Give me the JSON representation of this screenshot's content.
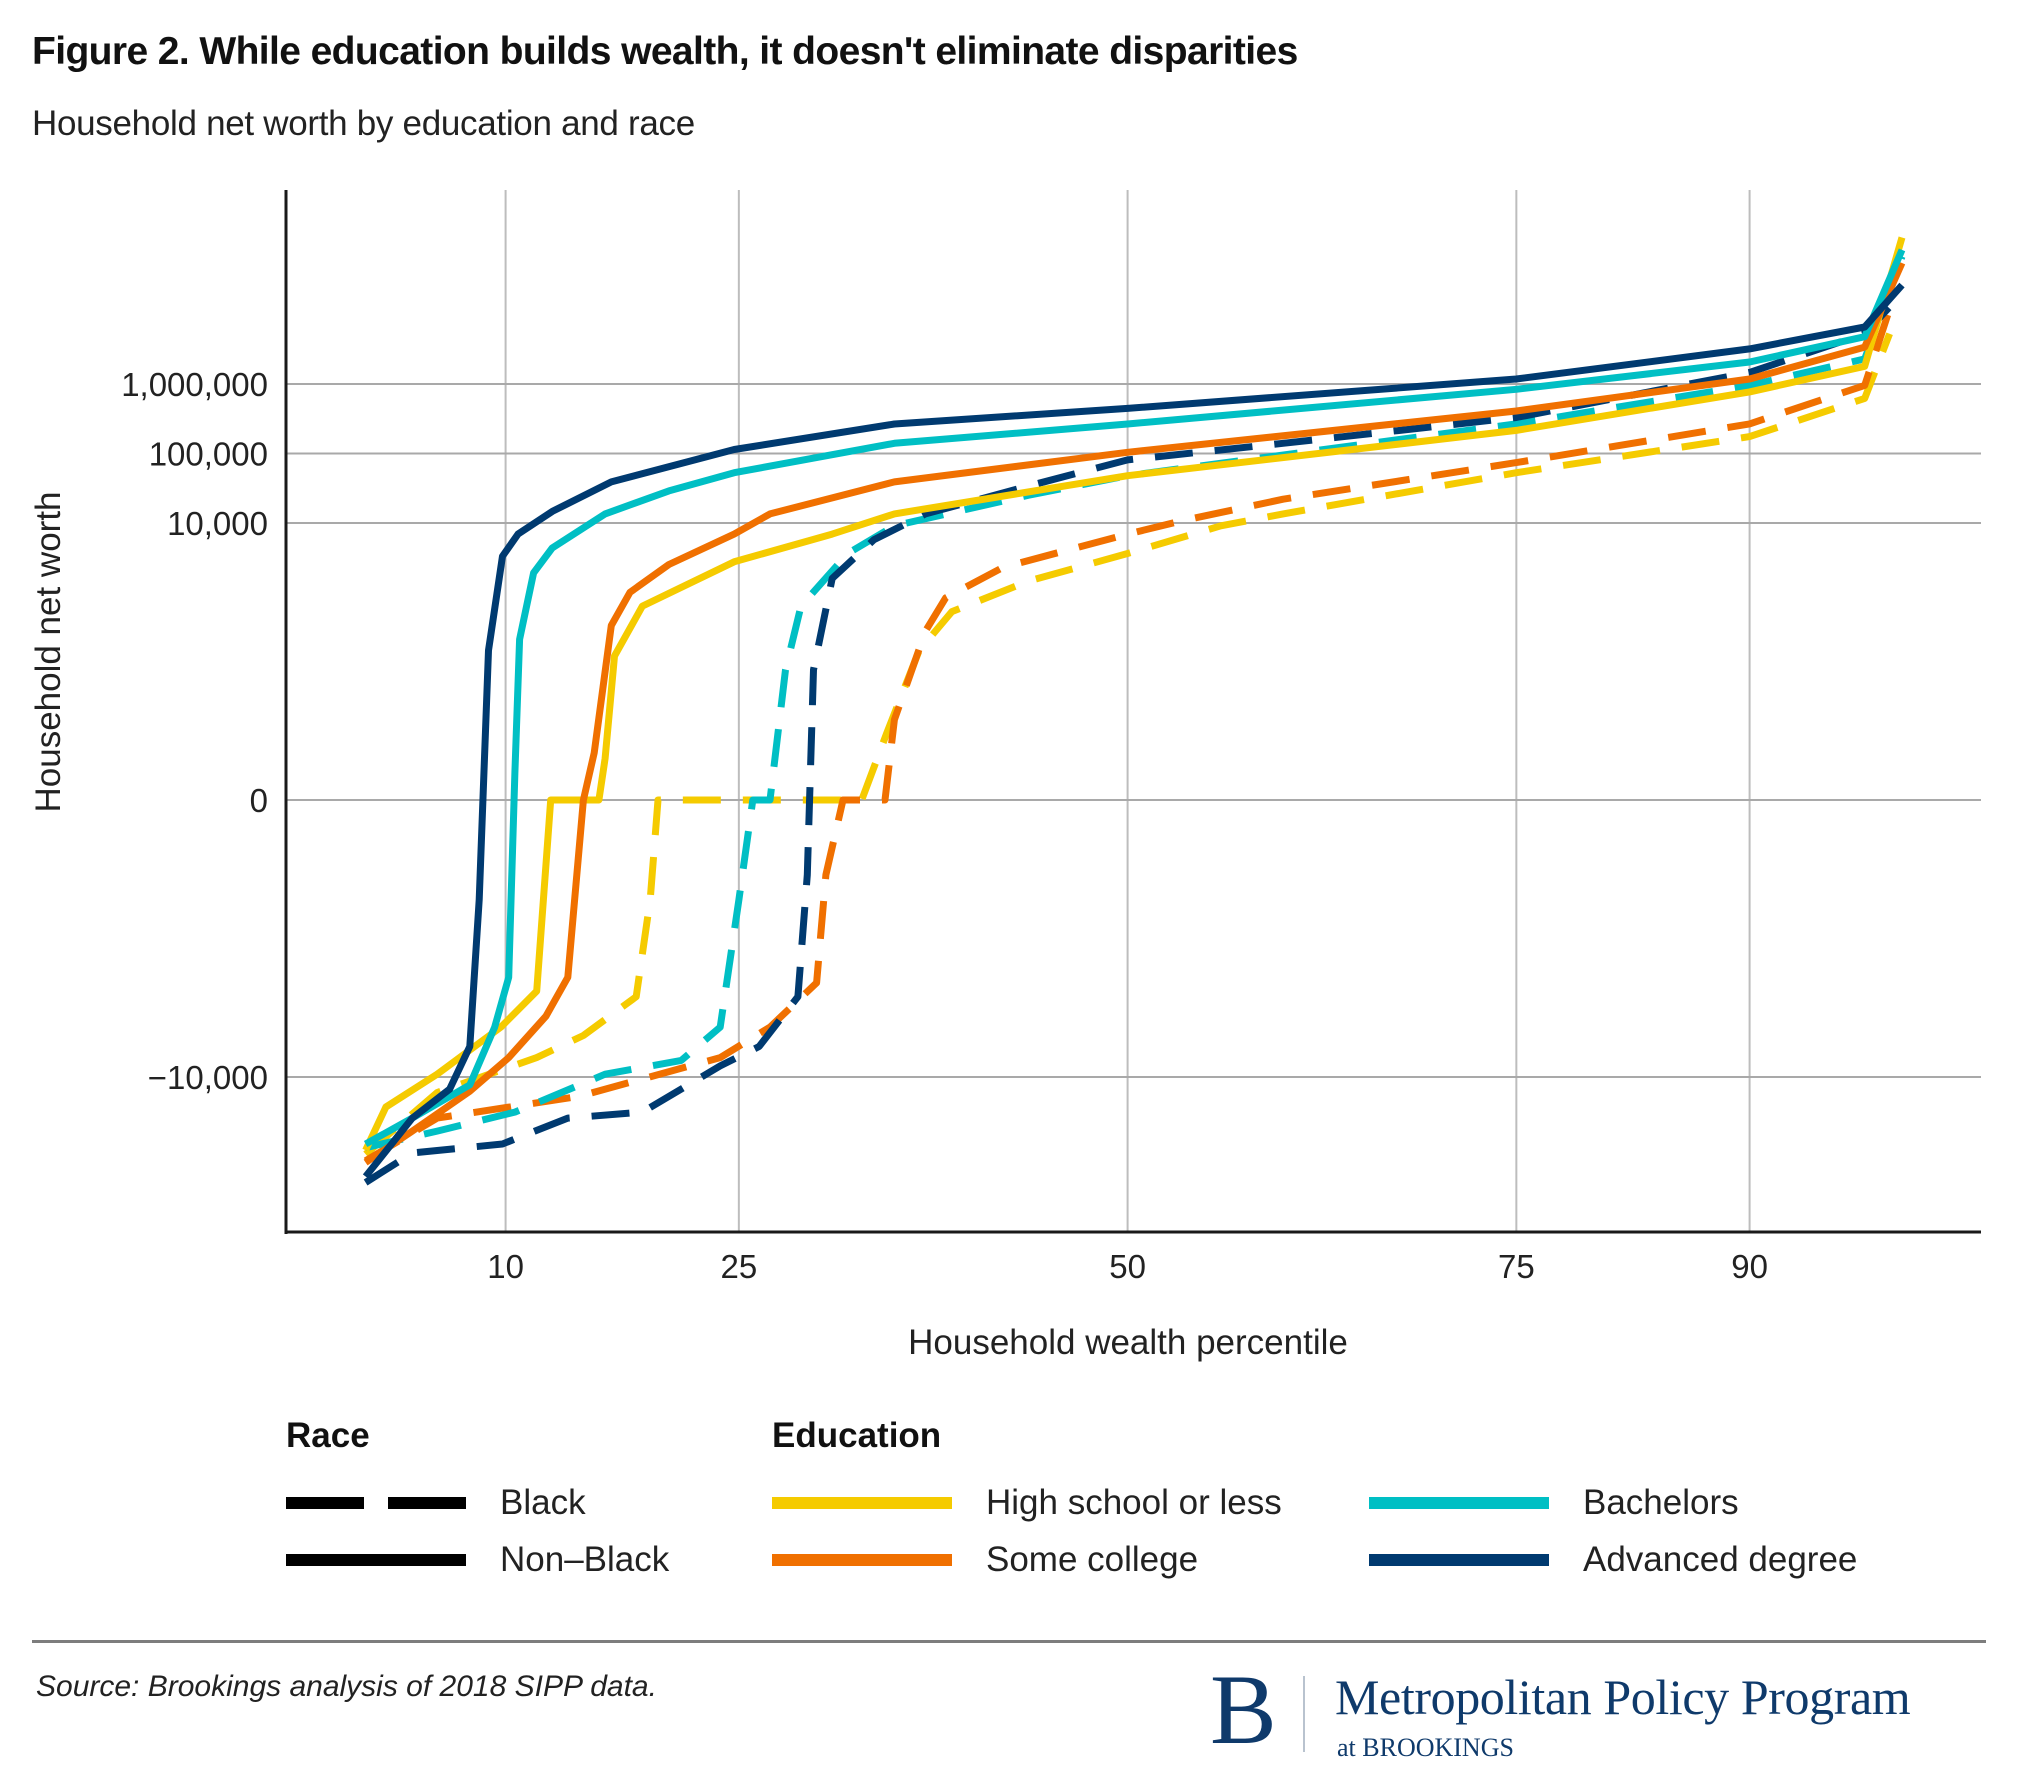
{
  "header": {
    "title": "Figure 2. While education builds wealth, it doesn't eliminate disparities",
    "subtitle": "Household net worth by education and race"
  },
  "colors": {
    "high_school": "#f5cb00",
    "some_college": "#f07000",
    "bachelors": "#00bfc4",
    "advanced": "#003a70",
    "grid": "#bdbdbd",
    "axis": "#1a1a1a"
  },
  "chart_data": {
    "type": "line",
    "title": "Figure 2. While education builds wealth, it doesn't eliminate disparities",
    "subtitle": "Household net worth by education and race",
    "xlabel": "Household wealth percentile",
    "ylabel": "Household net worth",
    "x_ticks": [
      10,
      25,
      50,
      75,
      90
    ],
    "x_tick_labels": [
      "10",
      "25",
      "50",
      "75",
      "90"
    ],
    "xlim": [
      0,
      100
    ],
    "y_scale": "symlog (linear between -10,000 and 10,000; logarithmic beyond)",
    "y_ticks": [
      -10000,
      0,
      10000,
      100000,
      1000000
    ],
    "y_tick_labels": [
      "−10,000",
      "0",
      "10,000",
      "100,000",
      "1,000,000"
    ],
    "grid": true,
    "legend_position": "bottom",
    "series": [
      {
        "name": "High school or less, Non-Black",
        "education": "High school or less",
        "race": "Non-Black",
        "color_key": "high_school",
        "dashed": false,
        "points": [
          [
            1,
            -113000
          ],
          [
            2.3,
            -27000
          ],
          [
            5.6,
            -9900
          ],
          [
            9.7,
            -8200
          ],
          [
            12,
            -6900
          ],
          [
            12.9,
            0
          ],
          [
            16,
            0
          ],
          [
            16.4,
            1500
          ],
          [
            17,
            5200
          ],
          [
            18.8,
            7000
          ],
          [
            24.7,
            8600
          ],
          [
            31,
            9600
          ],
          [
            35,
            13500
          ],
          [
            50,
            48000
          ],
          [
            75,
            215000
          ],
          [
            90,
            770000
          ],
          [
            97.4,
            1800000
          ],
          [
            99.8,
            128000000
          ]
        ]
      },
      {
        "name": "Some college, Non-Black",
        "education": "Some college",
        "race": "Non-Black",
        "color_key": "some_college",
        "dashed": false,
        "points": [
          [
            1,
            -170000
          ],
          [
            4,
            -60000
          ],
          [
            7.7,
            -16000
          ],
          [
            10.2,
            -9300
          ],
          [
            12.6,
            -7800
          ],
          [
            14,
            -6400
          ],
          [
            15,
            0
          ],
          [
            15.7,
            1700
          ],
          [
            16.8,
            6300
          ],
          [
            18,
            7500
          ],
          [
            20.5,
            8500
          ],
          [
            24.7,
            9600
          ],
          [
            27,
            13500
          ],
          [
            35,
            39000
          ],
          [
            50,
            104000
          ],
          [
            75,
            409000
          ],
          [
            90,
            1180000
          ],
          [
            97.4,
            3400000
          ],
          [
            99.8,
            55000000
          ]
        ]
      },
      {
        "name": "Bachelors, Non-Black",
        "education": "Bachelors",
        "race": "Non-Black",
        "color_key": "bachelors",
        "dashed": false,
        "points": [
          [
            1,
            -92000
          ],
          [
            4,
            -39000
          ],
          [
            7.7,
            -13000
          ],
          [
            9.3,
            -8200
          ],
          [
            10.2,
            -6400
          ],
          [
            10.6,
            1000
          ],
          [
            10.9,
            5800
          ],
          [
            11.8,
            8200
          ],
          [
            13,
            9100
          ],
          [
            16.4,
            13500
          ],
          [
            20.5,
            29000
          ],
          [
            24.7,
            53000
          ],
          [
            35,
            140000
          ],
          [
            50,
            266000
          ],
          [
            75,
            840000
          ],
          [
            90,
            2070000
          ],
          [
            97.4,
            4800000
          ],
          [
            99.8,
            85000000
          ]
        ]
      },
      {
        "name": "Advanced degree, Non-Black",
        "education": "Advanced degree",
        "race": "Non-Black",
        "color_key": "advanced",
        "dashed": false,
        "points": [
          [
            1,
            -270000
          ],
          [
            4,
            -39000
          ],
          [
            6.4,
            -15000
          ],
          [
            7.7,
            -8900
          ],
          [
            8.3,
            -3600
          ],
          [
            8.9,
            5400
          ],
          [
            9.8,
            8800
          ],
          [
            10.8,
            9600
          ],
          [
            13,
            14700
          ],
          [
            16.8,
            39000
          ],
          [
            24.7,
            114000
          ],
          [
            35,
            266000
          ],
          [
            50,
            446000
          ],
          [
            75,
            1180000
          ],
          [
            90,
            3200000
          ],
          [
            97.4,
            6600000
          ],
          [
            99.8,
            26500000
          ]
        ]
      },
      {
        "name": "High school or less, Black",
        "education": "High school or less",
        "race": "Black",
        "color_key": "high_school",
        "dashed": true,
        "points": [
          [
            1,
            -129000
          ],
          [
            5.6,
            -16700
          ],
          [
            12,
            -9300
          ],
          [
            15,
            -8500
          ],
          [
            18.4,
            -7100
          ],
          [
            19.3,
            -3600
          ],
          [
            19.8,
            0
          ],
          [
            32.9,
            0
          ],
          [
            34.5,
            2400
          ],
          [
            36.6,
            5400
          ],
          [
            38.7,
            6800
          ],
          [
            43.6,
            7900
          ],
          [
            50,
            8900
          ],
          [
            56,
            9900
          ],
          [
            60,
            13500
          ],
          [
            75,
            53000
          ],
          [
            90,
            175000
          ],
          [
            97.4,
            620000
          ],
          [
            99,
            5300000
          ]
        ]
      },
      {
        "name": "Some college, Black",
        "education": "Some college",
        "race": "Black",
        "color_key": "some_college",
        "dashed": true,
        "points": [
          [
            1,
            -160000
          ],
          [
            5.6,
            -39000
          ],
          [
            14.7,
            -19000
          ],
          [
            23.8,
            -9300
          ],
          [
            27,
            -8200
          ],
          [
            30,
            -6600
          ],
          [
            30.6,
            -2700
          ],
          [
            31.7,
            0
          ],
          [
            34.4,
            0
          ],
          [
            35,
            2900
          ],
          [
            37,
            6100
          ],
          [
            38.3,
            7300
          ],
          [
            42,
            8400
          ],
          [
            50,
            9600
          ],
          [
            53.6,
            10900
          ],
          [
            60,
            22000
          ],
          [
            75,
            74000
          ],
          [
            90,
            267000
          ],
          [
            97.4,
            955000
          ],
          [
            99,
            12000000
          ]
        ]
      },
      {
        "name": "Bachelors, Black",
        "education": "Bachelors",
        "race": "Black",
        "color_key": "bachelors",
        "dashed": true,
        "points": [
          [
            1,
            -104000
          ],
          [
            5.6,
            -60000
          ],
          [
            10.6,
            -32000
          ],
          [
            16.4,
            -9900
          ],
          [
            21.3,
            -9400
          ],
          [
            23.8,
            -8200
          ],
          [
            25,
            -3600
          ],
          [
            25.9,
            0
          ],
          [
            27,
            0
          ],
          [
            28,
            4700
          ],
          [
            29,
            7000
          ],
          [
            32,
            8900
          ],
          [
            35,
            9900
          ],
          [
            43.6,
            25000
          ],
          [
            50,
            48000
          ],
          [
            75,
            267000
          ],
          [
            90,
            955000
          ],
          [
            97.4,
            2300000
          ],
          [
            99.8,
            68000000
          ]
        ]
      },
      {
        "name": "Advanced degree, Black",
        "education": "Advanced degree",
        "race": "Black",
        "color_key": "advanced",
        "dashed": true,
        "points": [
          [
            1,
            -330000
          ],
          [
            4,
            -124000
          ],
          [
            9.8,
            -92000
          ],
          [
            14,
            -39000
          ],
          [
            18.8,
            -32000
          ],
          [
            23.8,
            -9600
          ],
          [
            26.3,
            -8900
          ],
          [
            28.8,
            -7100
          ],
          [
            29.4,
            -2700
          ],
          [
            29.8,
            4700
          ],
          [
            31,
            8000
          ],
          [
            33.7,
            9400
          ],
          [
            37,
            13500
          ],
          [
            43.6,
            34000
          ],
          [
            50,
            81000
          ],
          [
            60,
            140000
          ],
          [
            75,
            330000
          ],
          [
            90,
            1470000
          ],
          [
            97.4,
            5300000
          ],
          [
            99.8,
            20000000
          ]
        ]
      }
    ]
  },
  "legend": {
    "race_title": "Race",
    "education_title": "Education",
    "race_items": [
      {
        "label": "Black",
        "style": "dashed"
      },
      {
        "label": "Non–Black",
        "style": "solid"
      }
    ],
    "education_items": [
      {
        "label": "High school or less",
        "color": "#f5cb00"
      },
      {
        "label": "Some college",
        "color": "#f07000"
      },
      {
        "label": "Bachelors",
        "color": "#00bfc4"
      },
      {
        "label": "Advanced degree",
        "color": "#003a70"
      }
    ]
  },
  "footer": {
    "source": "Source: Brookings analysis of 2018 SIPP data.",
    "logo_letter": "B",
    "logo_name": "Metropolitan Policy Program",
    "logo_sub": "at BROOKINGS"
  }
}
